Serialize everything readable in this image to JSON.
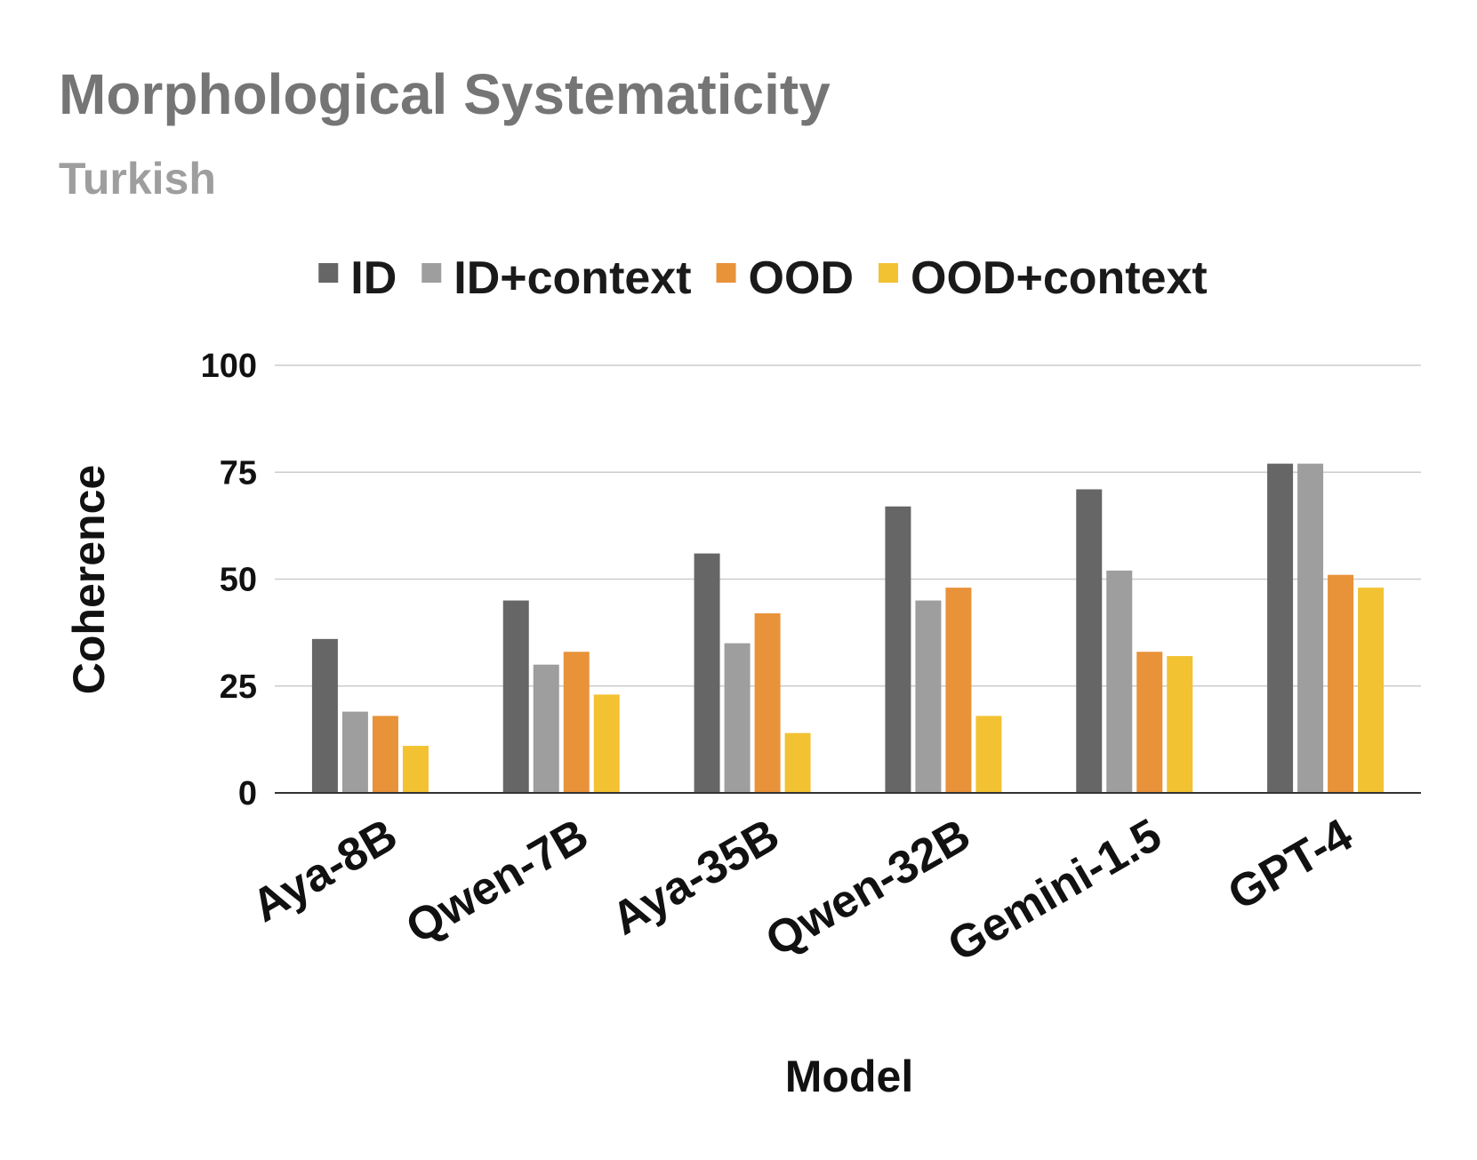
{
  "chart_data": {
    "type": "bar",
    "title": "Morphological Systematicity",
    "subtitle": "Turkish",
    "xlabel": "Model",
    "ylabel": "Coherence",
    "ylim": [
      0,
      100
    ],
    "yticks": [
      "0",
      "25",
      "50",
      "75",
      "100"
    ],
    "grid": true,
    "legend_position": "top",
    "categories": [
      "Aya-8B",
      "Qwen-7B",
      "Aya-35B",
      "Qwen-32B",
      "Gemini-1.5",
      "GPT-4"
    ],
    "series": [
      {
        "name": "ID",
        "color": "#666666",
        "values": [
          36,
          45,
          56,
          67,
          71,
          77
        ]
      },
      {
        "name": "ID+context",
        "color": "#9e9e9e",
        "values": [
          19,
          30,
          35,
          45,
          52,
          77
        ]
      },
      {
        "name": "OOD",
        "color": "#e8923a",
        "values": [
          18,
          33,
          42,
          48,
          33,
          51
        ]
      },
      {
        "name": "OOD+context",
        "color": "#f2c232",
        "values": [
          11,
          23,
          14,
          18,
          32,
          48
        ]
      }
    ]
  }
}
